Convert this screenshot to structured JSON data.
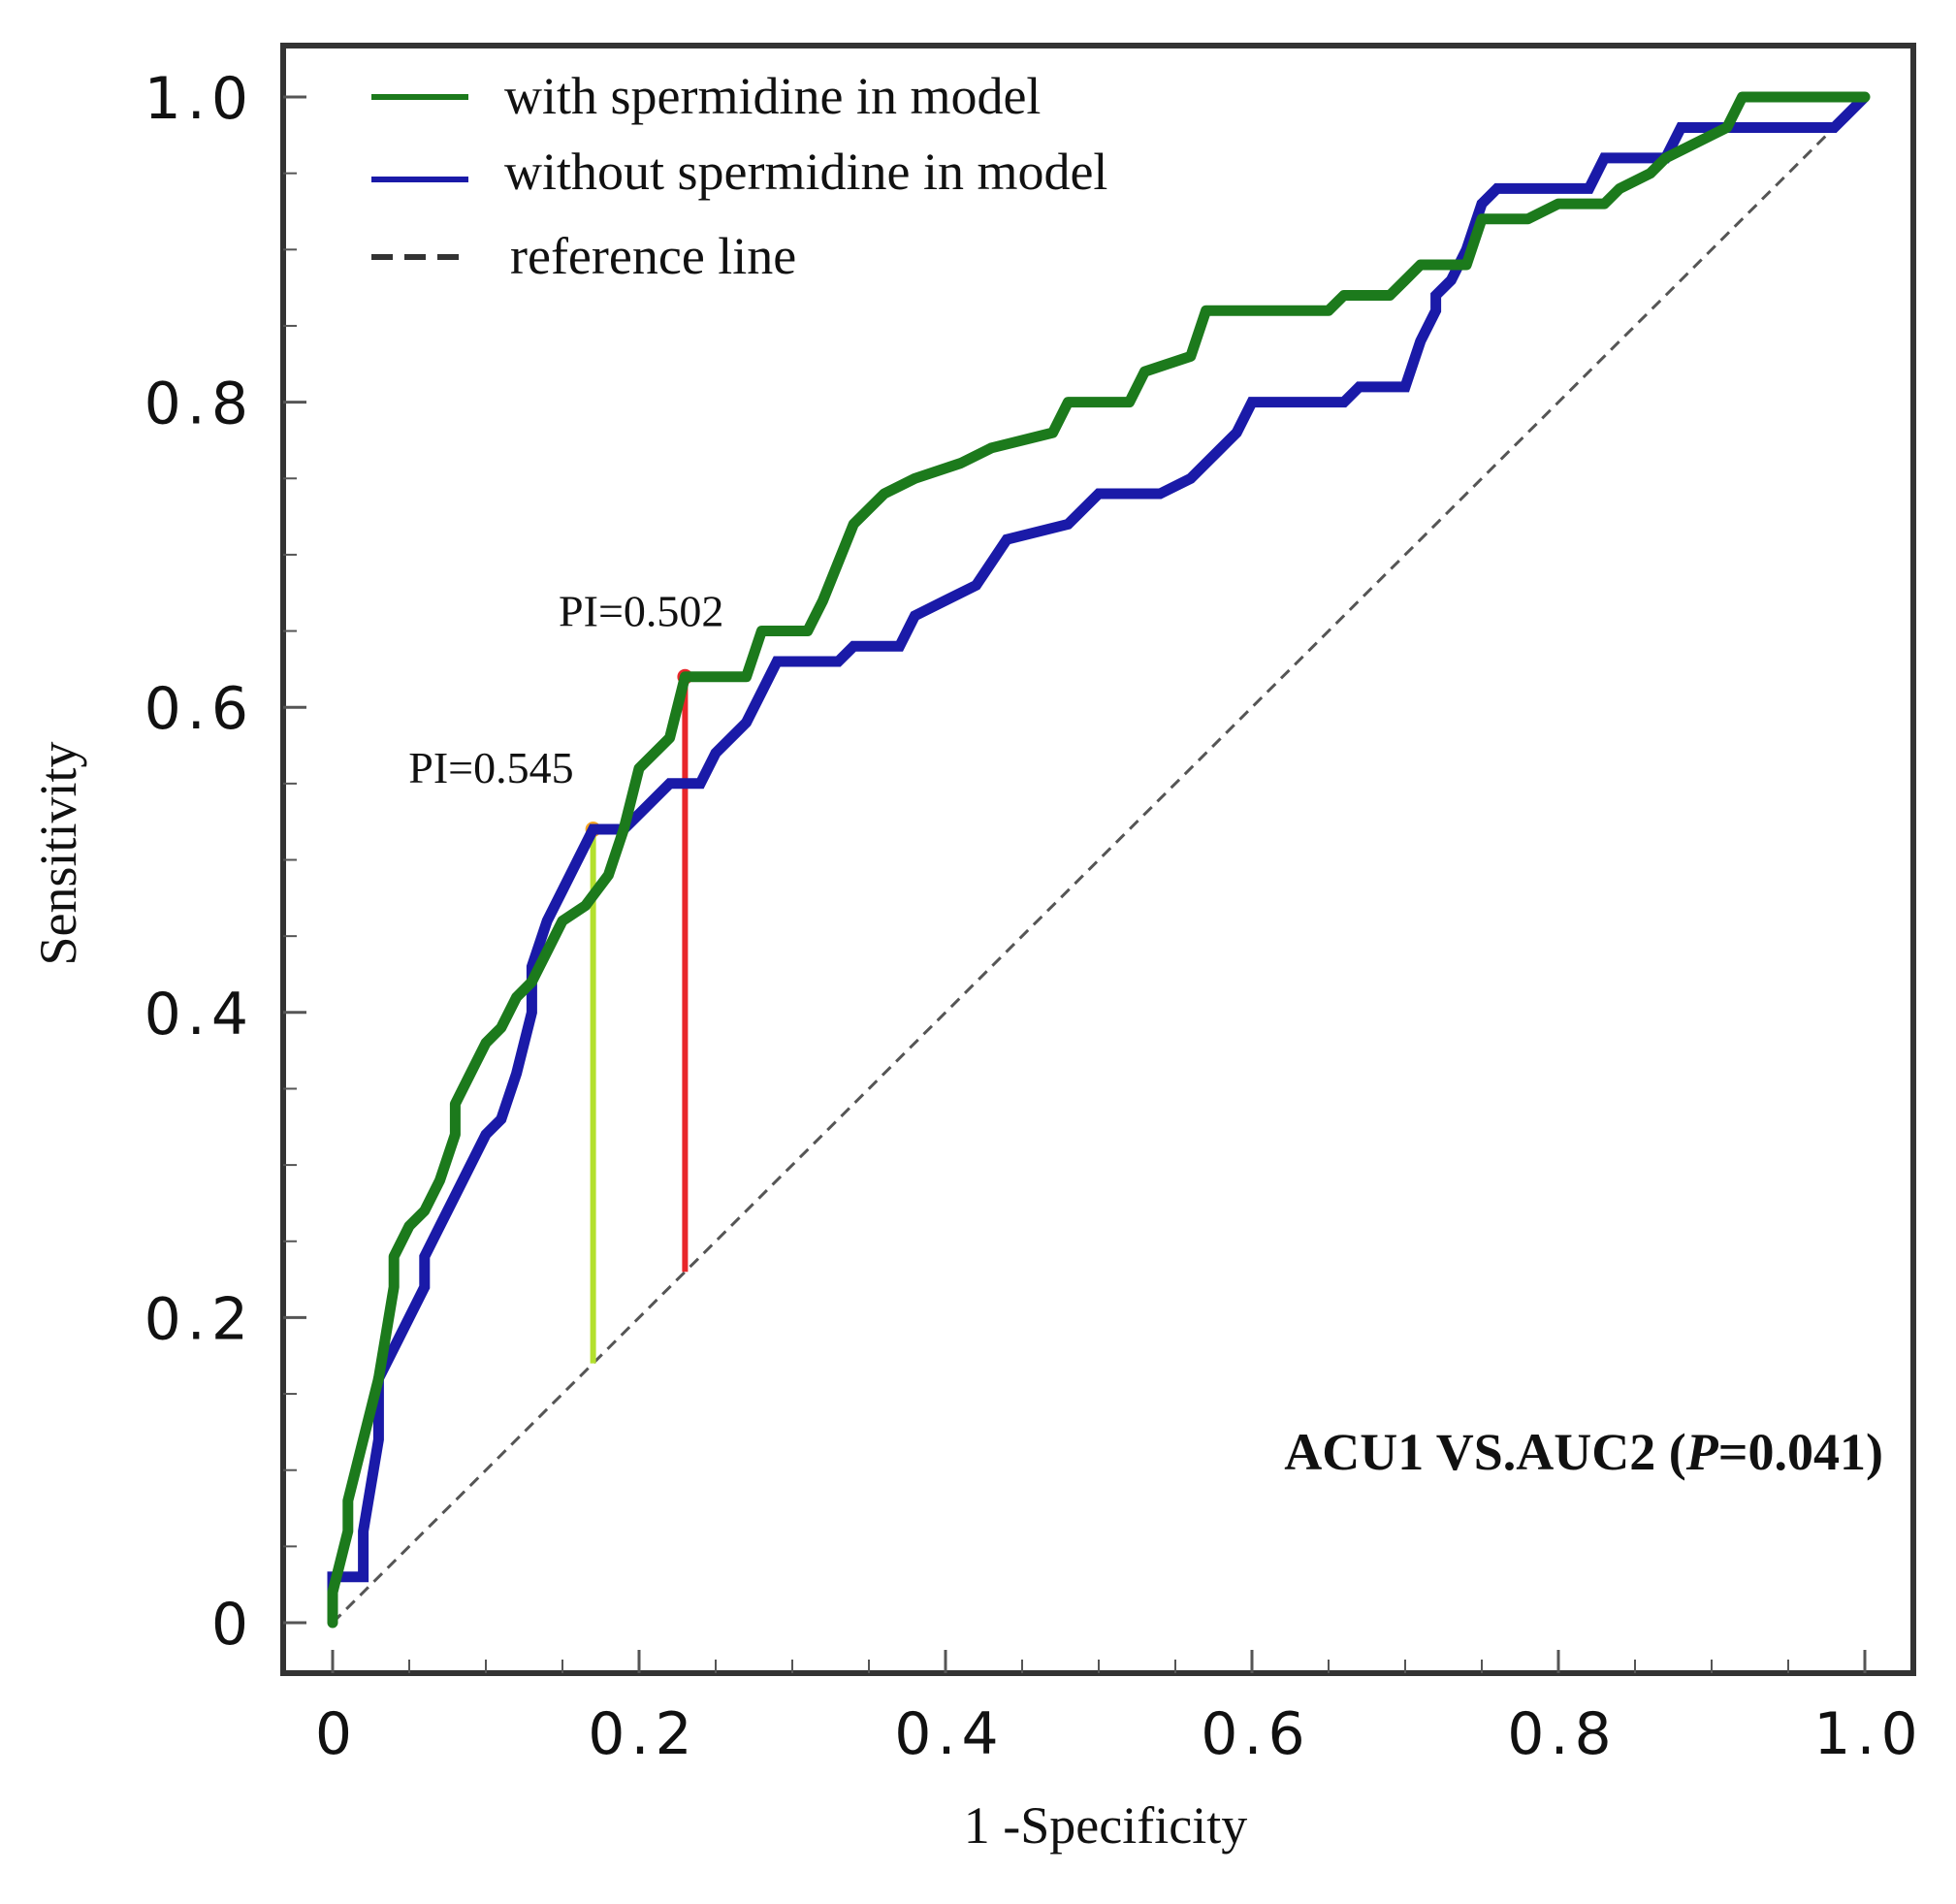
{
  "chart_data": {
    "type": "line",
    "title": "",
    "xlabel": "1 -Specificity",
    "ylabel": "Sensitivity",
    "xlim": [
      0,
      1
    ],
    "ylim": [
      0,
      1
    ],
    "x_ticks": [
      0,
      0.2,
      0.4,
      0.6,
      0.8,
      1.0
    ],
    "x_tick_labels": [
      "0",
      "0.2",
      "0.4",
      "0.6",
      "0.8",
      "1.0"
    ],
    "y_ticks": [
      0,
      0.2,
      0.4,
      0.6,
      0.8,
      1.0
    ],
    "y_tick_labels": [
      "0",
      "0.2",
      "0.4",
      "0.6",
      "0.8",
      "1.0"
    ],
    "legend_position": "top-left",
    "series": [
      {
        "name": "with spermidine in model",
        "color": "#1c7a1c",
        "style": "solid",
        "points": [
          [
            0,
            0
          ],
          [
            0,
            0.02
          ],
          [
            0.005,
            0.04
          ],
          [
            0.01,
            0.06
          ],
          [
            0.01,
            0.08
          ],
          [
            0.015,
            0.1
          ],
          [
            0.02,
            0.12
          ],
          [
            0.025,
            0.14
          ],
          [
            0.03,
            0.16
          ],
          [
            0.035,
            0.19
          ],
          [
            0.04,
            0.22
          ],
          [
            0.04,
            0.24
          ],
          [
            0.05,
            0.26
          ],
          [
            0.06,
            0.27
          ],
          [
            0.07,
            0.29
          ],
          [
            0.08,
            0.32
          ],
          [
            0.08,
            0.34
          ],
          [
            0.09,
            0.36
          ],
          [
            0.1,
            0.38
          ],
          [
            0.11,
            0.39
          ],
          [
            0.12,
            0.41
          ],
          [
            0.13,
            0.42
          ],
          [
            0.14,
            0.44
          ],
          [
            0.15,
            0.46
          ],
          [
            0.165,
            0.47
          ],
          [
            0.18,
            0.49
          ],
          [
            0.19,
            0.52
          ],
          [
            0.2,
            0.56
          ],
          [
            0.22,
            0.58
          ],
          [
            0.23,
            0.62
          ],
          [
            0.27,
            0.62
          ],
          [
            0.28,
            0.65
          ],
          [
            0.31,
            0.65
          ],
          [
            0.32,
            0.67
          ],
          [
            0.34,
            0.72
          ],
          [
            0.36,
            0.74
          ],
          [
            0.38,
            0.75
          ],
          [
            0.41,
            0.76
          ],
          [
            0.43,
            0.77
          ],
          [
            0.47,
            0.78
          ],
          [
            0.48,
            0.8
          ],
          [
            0.52,
            0.8
          ],
          [
            0.53,
            0.82
          ],
          [
            0.56,
            0.83
          ],
          [
            0.57,
            0.86
          ],
          [
            0.65,
            0.86
          ],
          [
            0.66,
            0.87
          ],
          [
            0.69,
            0.87
          ],
          [
            0.7,
            0.88
          ],
          [
            0.71,
            0.89
          ],
          [
            0.74,
            0.89
          ],
          [
            0.75,
            0.92
          ],
          [
            0.78,
            0.92
          ],
          [
            0.8,
            0.93
          ],
          [
            0.83,
            0.93
          ],
          [
            0.84,
            0.94
          ],
          [
            0.86,
            0.95
          ],
          [
            0.87,
            0.96
          ],
          [
            0.89,
            0.97
          ],
          [
            0.91,
            0.98
          ],
          [
            0.92,
            1.0
          ],
          [
            1.0,
            1.0
          ]
        ]
      },
      {
        "name": "without spermidine in model",
        "color": "#1a1aa8",
        "style": "solid",
        "points": [
          [
            0,
            0
          ],
          [
            0,
            0.03
          ],
          [
            0.02,
            0.03
          ],
          [
            0.02,
            0.06
          ],
          [
            0.025,
            0.09
          ],
          [
            0.03,
            0.12
          ],
          [
            0.03,
            0.16
          ],
          [
            0.04,
            0.18
          ],
          [
            0.05,
            0.2
          ],
          [
            0.06,
            0.22
          ],
          [
            0.06,
            0.24
          ],
          [
            0.07,
            0.26
          ],
          [
            0.08,
            0.28
          ],
          [
            0.09,
            0.3
          ],
          [
            0.1,
            0.32
          ],
          [
            0.11,
            0.33
          ],
          [
            0.12,
            0.36
          ],
          [
            0.13,
            0.4
          ],
          [
            0.13,
            0.43
          ],
          [
            0.14,
            0.46
          ],
          [
            0.15,
            0.48
          ],
          [
            0.16,
            0.5
          ],
          [
            0.17,
            0.52
          ],
          [
            0.19,
            0.52
          ],
          [
            0.2,
            0.53
          ],
          [
            0.22,
            0.55
          ],
          [
            0.24,
            0.55
          ],
          [
            0.25,
            0.57
          ],
          [
            0.27,
            0.59
          ],
          [
            0.28,
            0.61
          ],
          [
            0.29,
            0.63
          ],
          [
            0.33,
            0.63
          ],
          [
            0.34,
            0.64
          ],
          [
            0.37,
            0.64
          ],
          [
            0.38,
            0.66
          ],
          [
            0.4,
            0.67
          ],
          [
            0.42,
            0.68
          ],
          [
            0.44,
            0.71
          ],
          [
            0.48,
            0.72
          ],
          [
            0.5,
            0.74
          ],
          [
            0.54,
            0.74
          ],
          [
            0.56,
            0.75
          ],
          [
            0.58,
            0.77
          ],
          [
            0.59,
            0.78
          ],
          [
            0.6,
            0.8
          ],
          [
            0.66,
            0.8
          ],
          [
            0.67,
            0.81
          ],
          [
            0.7,
            0.81
          ],
          [
            0.71,
            0.84
          ],
          [
            0.72,
            0.86
          ],
          [
            0.72,
            0.87
          ],
          [
            0.73,
            0.88
          ],
          [
            0.74,
            0.9
          ],
          [
            0.75,
            0.93
          ],
          [
            0.76,
            0.94
          ],
          [
            0.82,
            0.94
          ],
          [
            0.83,
            0.96
          ],
          [
            0.87,
            0.96
          ],
          [
            0.88,
            0.98
          ],
          [
            0.98,
            0.98
          ],
          [
            1.0,
            1.0
          ]
        ]
      },
      {
        "name": "reference line",
        "color": "#555555",
        "style": "dashed",
        "points": [
          [
            0,
            0
          ],
          [
            1,
            1
          ]
        ]
      }
    ],
    "annotations": [
      {
        "text": "PI=0.545",
        "x": 0.17,
        "y_point": 0.52,
        "y_base": 0.17,
        "color": "#b3e02e",
        "marker_color": "#f5a623"
      },
      {
        "text": "PI=0.502",
        "x": 0.23,
        "y_point": 0.62,
        "y_base": 0.23,
        "color": "#e8262a",
        "marker_color": "#e8262a"
      }
    ],
    "comparison": {
      "prefix": "ACU1 VS.AUC2 (",
      "p_symbol": "P",
      "suffix": "=0.041)"
    }
  }
}
